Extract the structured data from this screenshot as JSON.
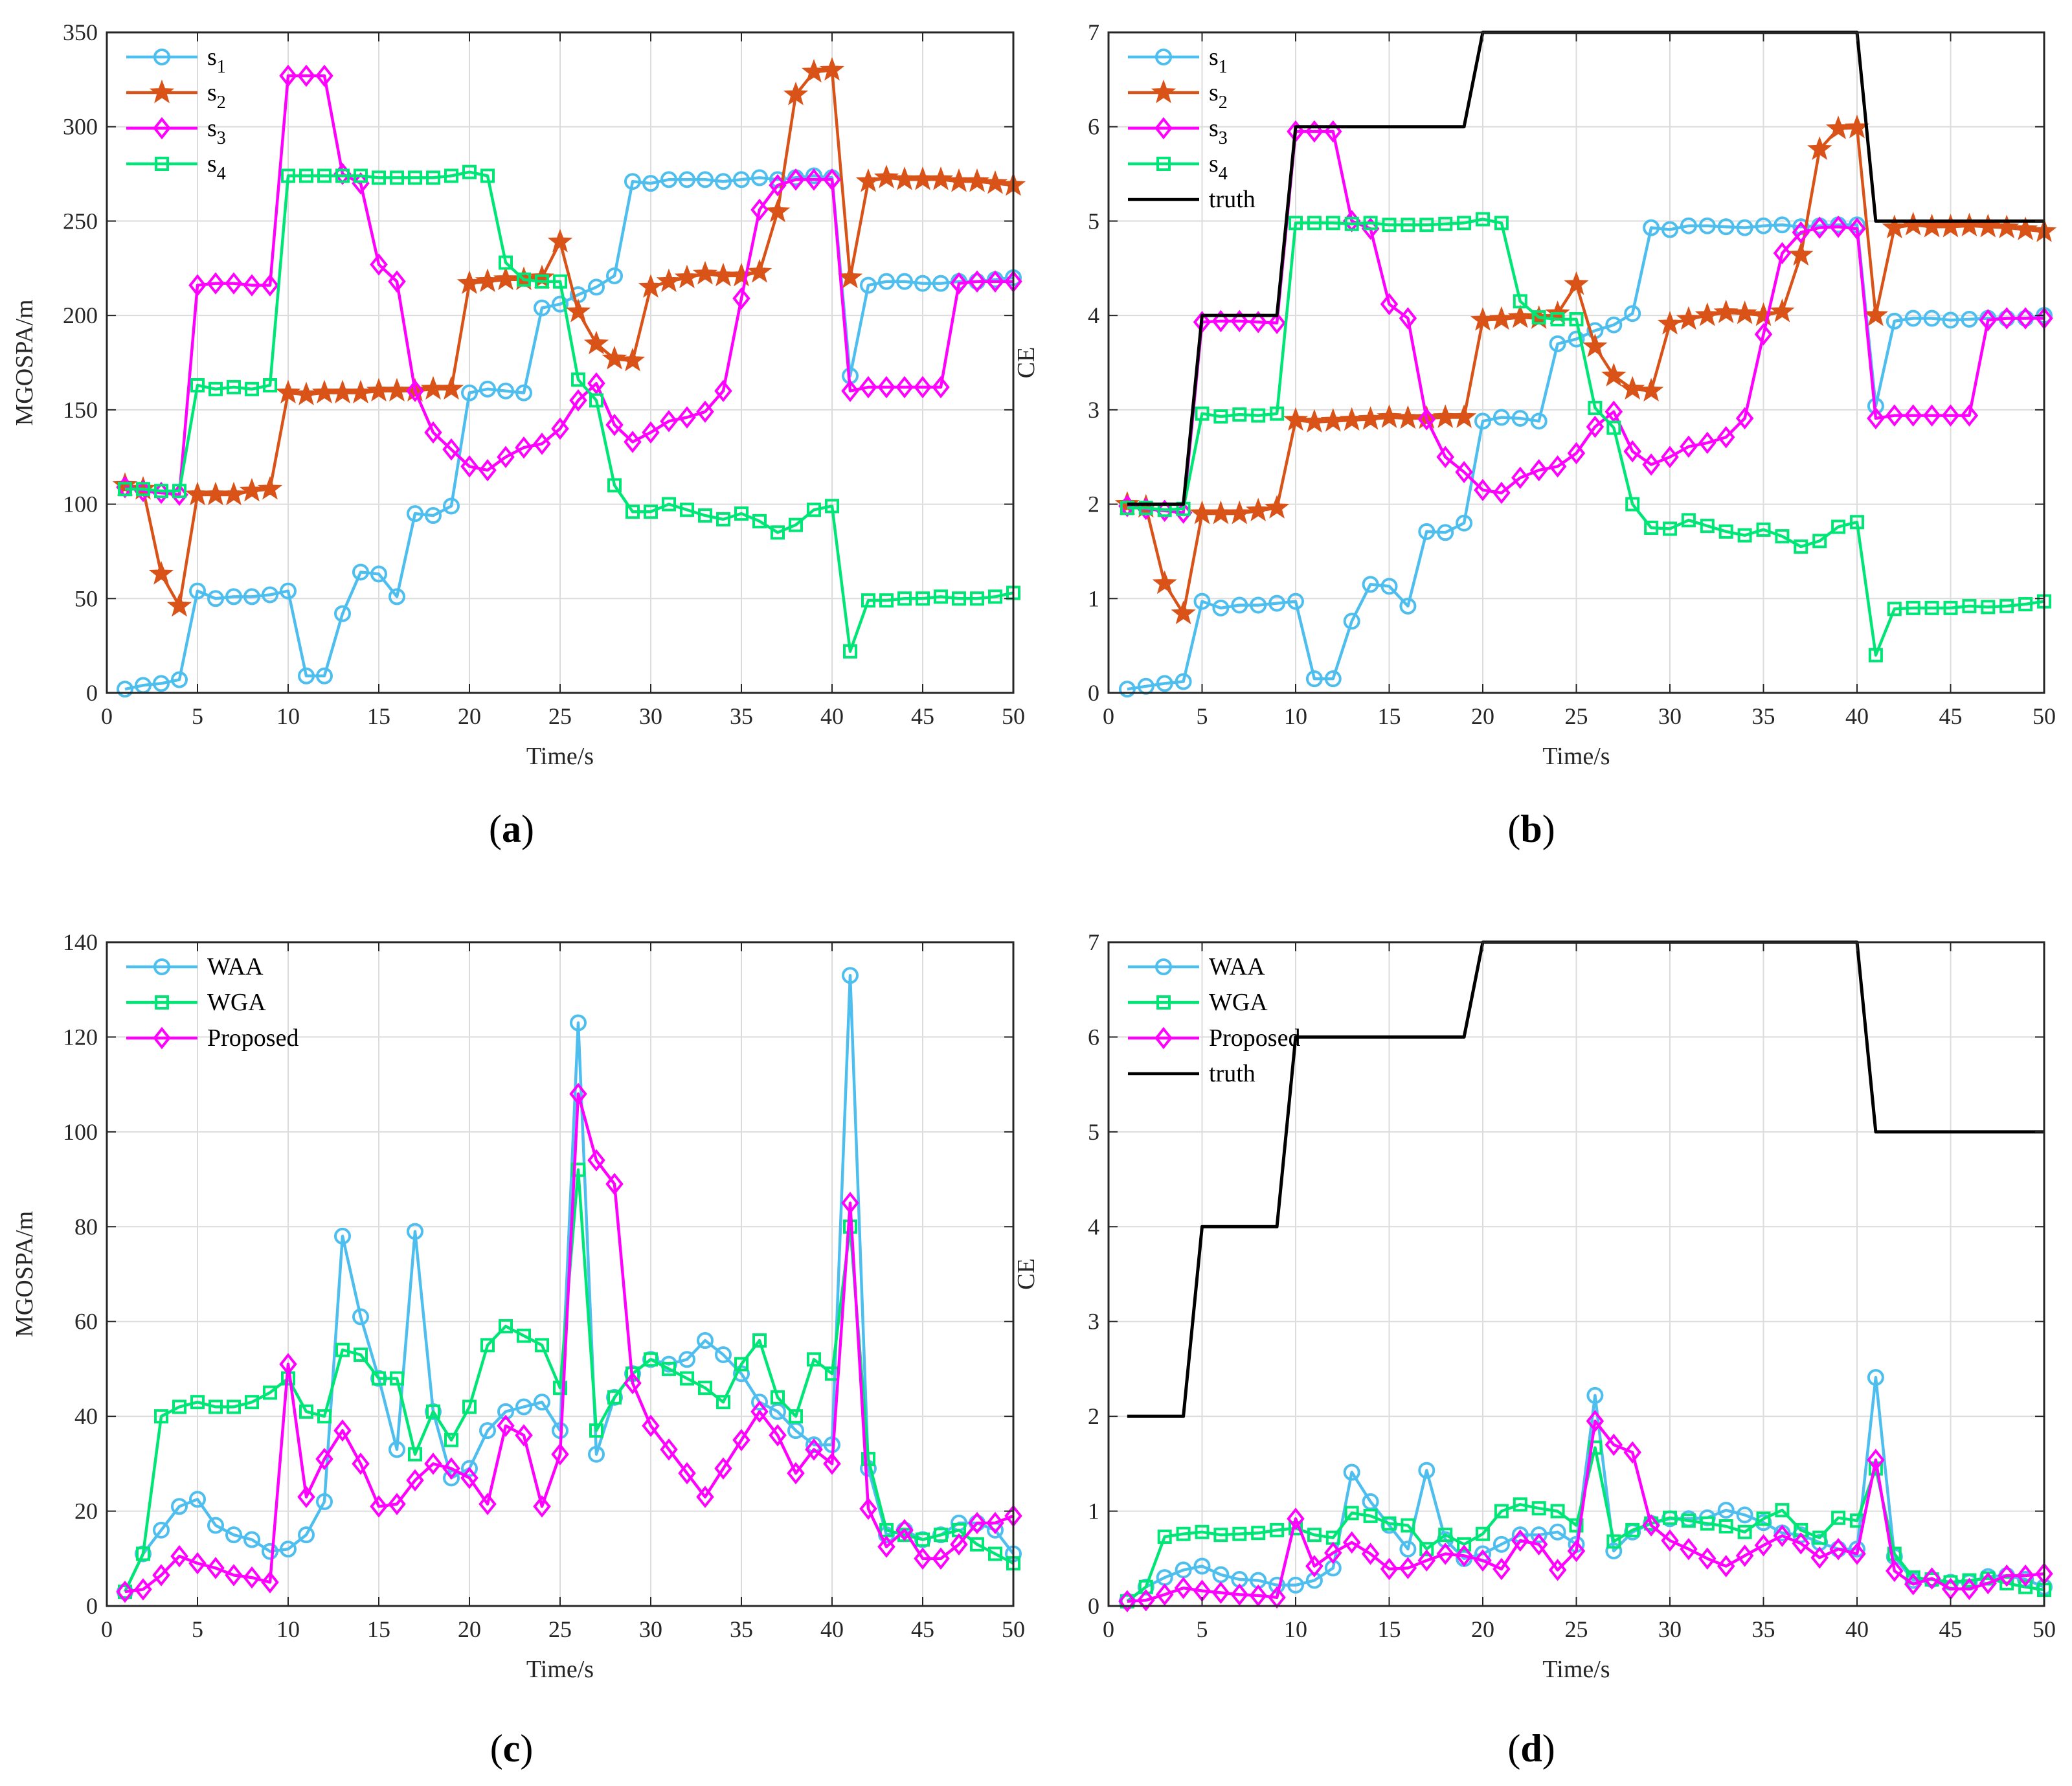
{
  "panel_labels": [
    "(a)",
    "(b)",
    "(c)",
    "(d)"
  ],
  "colors": {
    "s1": "#4DBEEE",
    "s2": "#D95319",
    "s3": "#FF00FF",
    "s4": "#00E676",
    "truth": "#000000",
    "WAA": "#4DBEEE",
    "WGA": "#00E676",
    "Proposed": "#FF00FF",
    "grid": "#dcdcdc"
  },
  "chart_data": [
    {
      "id": "a",
      "type": "line",
      "xlabel": "Time/s",
      "ylabel": "MGOSPA/m",
      "xlim": [
        0,
        50
      ],
      "ylim": [
        0,
        350
      ],
      "xticks": [
        0,
        5,
        10,
        15,
        20,
        25,
        30,
        35,
        40,
        45,
        50
      ],
      "yticks": [
        0,
        50,
        100,
        150,
        200,
        250,
        300,
        350
      ],
      "grid": true,
      "legend_position": "top-left",
      "x": [
        1,
        2,
        3,
        4,
        5,
        6,
        7,
        8,
        9,
        10,
        11,
        12,
        13,
        14,
        15,
        16,
        17,
        18,
        19,
        20,
        21,
        22,
        23,
        24,
        25,
        26,
        27,
        28,
        29,
        30,
        31,
        32,
        33,
        34,
        35,
        36,
        37,
        38,
        39,
        40,
        41,
        42,
        43,
        44,
        45,
        46,
        47,
        48,
        49,
        50
      ],
      "series": [
        {
          "name": "s_1",
          "color_key": "s1",
          "marker": "circle",
          "values": [
            2,
            4,
            5,
            7,
            54,
            50,
            51,
            51,
            52,
            54,
            9,
            9,
            42,
            64,
            63,
            51,
            95,
            94,
            99,
            159,
            161,
            160,
            159,
            204,
            206,
            211,
            215,
            221,
            271,
            270,
            272,
            272,
            272,
            271,
            272,
            273,
            272,
            273,
            274,
            273,
            168,
            216,
            218,
            218,
            217,
            217,
            218,
            218,
            219,
            220
          ]
        },
        {
          "name": "s_2",
          "color_key": "s2",
          "marker": "star",
          "values": [
            110,
            108,
            63,
            46,
            105,
            105,
            105,
            107,
            108,
            159,
            158,
            159,
            159,
            159,
            160,
            160,
            160,
            161,
            161,
            217,
            218,
            219,
            219,
            220,
            239,
            202,
            185,
            177,
            176,
            215,
            218,
            220,
            222,
            221,
            221,
            223,
            255,
            317,
            329,
            330,
            220,
            271,
            273,
            272,
            272,
            272,
            271,
            271,
            270,
            269
          ]
        },
        {
          "name": "s_3",
          "color_key": "s3",
          "marker": "diamond",
          "values": [
            109,
            107,
            106,
            105,
            216,
            217,
            217,
            216,
            216,
            327,
            327,
            327,
            275,
            270,
            227,
            218,
            160,
            138,
            129,
            120,
            118,
            125,
            130,
            132,
            140,
            155,
            164,
            142,
            133,
            138,
            144,
            146,
            149,
            160,
            209,
            256,
            269,
            272,
            272,
            272,
            160,
            162,
            162,
            162,
            162,
            162,
            217,
            218,
            218,
            218
          ]
        },
        {
          "name": "s_4",
          "color_key": "s4",
          "marker": "square",
          "values": [
            108,
            108,
            107,
            107,
            163,
            161,
            162,
            161,
            163,
            274,
            274,
            274,
            274,
            274,
            273,
            273,
            273,
            273,
            274,
            276,
            274,
            228,
            219,
            218,
            218,
            166,
            155,
            110,
            96,
            96,
            100,
            97,
            94,
            92,
            95,
            91,
            85,
            89,
            97,
            99,
            22,
            49,
            49,
            50,
            50,
            51,
            50,
            50,
            51,
            53
          ]
        }
      ]
    },
    {
      "id": "b",
      "type": "line",
      "xlabel": "Time/s",
      "ylabel": "CE",
      "xlim": [
        0,
        50
      ],
      "ylim": [
        0,
        7
      ],
      "xticks": [
        0,
        5,
        10,
        15,
        20,
        25,
        30,
        35,
        40,
        45,
        50
      ],
      "yticks": [
        0,
        1,
        2,
        3,
        4,
        5,
        6,
        7
      ],
      "grid": true,
      "legend_position": "top-left",
      "x": [
        1,
        2,
        3,
        4,
        5,
        6,
        7,
        8,
        9,
        10,
        11,
        12,
        13,
        14,
        15,
        16,
        17,
        18,
        19,
        20,
        21,
        22,
        23,
        24,
        25,
        26,
        27,
        28,
        29,
        30,
        31,
        32,
        33,
        34,
        35,
        36,
        37,
        38,
        39,
        40,
        41,
        42,
        43,
        44,
        45,
        46,
        47,
        48,
        49,
        50
      ],
      "series": [
        {
          "name": "s_1",
          "color_key": "s1",
          "marker": "circle",
          "values": [
            0.04,
            0.07,
            0.1,
            0.12,
            0.97,
            0.9,
            0.93,
            0.93,
            0.95,
            0.97,
            0.15,
            0.15,
            0.76,
            1.15,
            1.13,
            0.92,
            1.71,
            1.7,
            1.8,
            2.88,
            2.92,
            2.91,
            2.88,
            3.7,
            3.75,
            3.84,
            3.9,
            4.02,
            4.93,
            4.91,
            4.95,
            4.95,
            4.94,
            4.93,
            4.95,
            4.96,
            4.94,
            4.95,
            4.96,
            4.96,
            3.04,
            3.94,
            3.97,
            3.97,
            3.95,
            3.96,
            3.97,
            3.97,
            3.97,
            4.0
          ]
        },
        {
          "name": "s_2",
          "color_key": "s2",
          "marker": "star",
          "values": [
            2.0,
            1.97,
            1.16,
            0.84,
            1.9,
            1.9,
            1.9,
            1.93,
            1.96,
            2.89,
            2.87,
            2.88,
            2.89,
            2.9,
            2.92,
            2.91,
            2.91,
            2.92,
            2.92,
            3.95,
            3.96,
            3.98,
            3.97,
            4.02,
            4.33,
            3.67,
            3.36,
            3.22,
            3.2,
            3.91,
            3.96,
            4.0,
            4.03,
            4.02,
            4.0,
            4.04,
            4.64,
            5.76,
            5.98,
            5.99,
            4.0,
            4.93,
            4.96,
            4.94,
            4.94,
            4.95,
            4.94,
            4.93,
            4.91,
            4.89
          ]
        },
        {
          "name": "s_3",
          "color_key": "s3",
          "marker": "diamond",
          "values": [
            1.98,
            1.95,
            1.93,
            1.91,
            3.93,
            3.94,
            3.94,
            3.93,
            3.92,
            5.95,
            5.95,
            5.95,
            5.0,
            4.92,
            4.12,
            3.97,
            2.9,
            2.5,
            2.34,
            2.15,
            2.12,
            2.28,
            2.36,
            2.4,
            2.54,
            2.82,
            2.98,
            2.56,
            2.42,
            2.5,
            2.61,
            2.65,
            2.71,
            2.91,
            3.8,
            4.66,
            4.88,
            4.93,
            4.94,
            4.92,
            2.91,
            2.94,
            2.94,
            2.94,
            2.94,
            2.94,
            3.95,
            3.97,
            3.97,
            3.97
          ]
        },
        {
          "name": "s_4",
          "color_key": "s4",
          "marker": "square",
          "values": [
            1.96,
            1.96,
            1.94,
            1.95,
            2.96,
            2.93,
            2.95,
            2.94,
            2.96,
            4.98,
            4.98,
            4.98,
            4.97,
            4.98,
            4.96,
            4.96,
            4.96,
            4.97,
            4.98,
            5.02,
            4.98,
            4.15,
            3.98,
            3.96,
            3.96,
            3.02,
            2.81,
            2.0,
            1.75,
            1.74,
            1.83,
            1.77,
            1.71,
            1.67,
            1.73,
            1.66,
            1.55,
            1.61,
            1.76,
            1.81,
            0.4,
            0.89,
            0.9,
            0.9,
            0.9,
            0.92,
            0.91,
            0.92,
            0.94,
            0.97
          ]
        },
        {
          "name": "truth",
          "color_key": "truth",
          "marker": "none",
          "step": true,
          "x": [
            1,
            4,
            5,
            9,
            10,
            19,
            20,
            40,
            41,
            50
          ],
          "values": [
            2,
            2,
            4,
            4,
            6,
            6,
            7,
            7,
            5,
            5
          ]
        }
      ]
    },
    {
      "id": "c",
      "type": "line",
      "xlabel": "Time/s",
      "ylabel": "MGOSPA/m",
      "xlim": [
        0,
        50
      ],
      "ylim": [
        0,
        140
      ],
      "xticks": [
        0,
        5,
        10,
        15,
        20,
        25,
        30,
        35,
        40,
        45,
        50
      ],
      "yticks": [
        0,
        20,
        40,
        60,
        80,
        100,
        120,
        140
      ],
      "grid": true,
      "legend_position": "top-left",
      "x": [
        1,
        2,
        3,
        4,
        5,
        6,
        7,
        8,
        9,
        10,
        11,
        12,
        13,
        14,
        15,
        16,
        17,
        18,
        19,
        20,
        21,
        22,
        23,
        24,
        25,
        26,
        27,
        28,
        29,
        30,
        31,
        32,
        33,
        34,
        35,
        36,
        37,
        38,
        39,
        40,
        41,
        42,
        43,
        44,
        45,
        46,
        47,
        48,
        49,
        50
      ],
      "series": [
        {
          "name": "WAA",
          "color_key": "WAA",
          "marker": "circle",
          "values": [
            3,
            11,
            16,
            21,
            22.5,
            17,
            15,
            14,
            11.5,
            12,
            15,
            22,
            78,
            61,
            48,
            33,
            79,
            41,
            27,
            29,
            37,
            41,
            42,
            43,
            37,
            123,
            32,
            44,
            49,
            52,
            51,
            52,
            56,
            53,
            49,
            43,
            41,
            37,
            34,
            34,
            133,
            29,
            15,
            16,
            14,
            15,
            17.5,
            17.5,
            16,
            11
          ]
        },
        {
          "name": "WGA",
          "color_key": "WGA",
          "marker": "square",
          "values": [
            3,
            11,
            40,
            42,
            43,
            42,
            42,
            43,
            45,
            48,
            41,
            40,
            54,
            53,
            48,
            48,
            32,
            41,
            35,
            42,
            55,
            59,
            57,
            55,
            46,
            92,
            37,
            44,
            49,
            52,
            50,
            48,
            46,
            43,
            51,
            56,
            44,
            40,
            52,
            49,
            80,
            31,
            16,
            15,
            14,
            15,
            16,
            13,
            11,
            9
          ]
        },
        {
          "name": "Proposed",
          "color_key": "Proposed",
          "marker": "diamond",
          "values": [
            3,
            3.5,
            6.5,
            10.5,
            9,
            8,
            6.5,
            6,
            5,
            51,
            23,
            31,
            37,
            30,
            21,
            21.5,
            26.5,
            30,
            29,
            27,
            21.5,
            38,
            36,
            21,
            32,
            108,
            94,
            89,
            47,
            38,
            33,
            28,
            23,
            29,
            35,
            41,
            36,
            28,
            33,
            30,
            85,
            20.5,
            12.5,
            16,
            10,
            10,
            13,
            17.5,
            17.5,
            19
          ]
        }
      ]
    },
    {
      "id": "d",
      "type": "line",
      "xlabel": "Time/s",
      "ylabel": "CE",
      "xlim": [
        0,
        50
      ],
      "ylim": [
        0,
        7
      ],
      "xticks": [
        0,
        5,
        10,
        15,
        20,
        25,
        30,
        35,
        40,
        45,
        50
      ],
      "yticks": [
        0,
        1,
        2,
        3,
        4,
        5,
        6,
        7
      ],
      "grid": true,
      "legend_position": "top-left",
      "x": [
        1,
        2,
        3,
        4,
        5,
        6,
        7,
        8,
        9,
        10,
        11,
        12,
        13,
        14,
        15,
        16,
        17,
        18,
        19,
        20,
        21,
        22,
        23,
        24,
        25,
        26,
        27,
        28,
        29,
        30,
        31,
        32,
        33,
        34,
        35,
        36,
        37,
        38,
        39,
        40,
        41,
        42,
        43,
        44,
        45,
        46,
        47,
        48,
        49,
        50
      ],
      "series": [
        {
          "name": "WAA",
          "color_key": "WAA",
          "marker": "circle",
          "values": [
            0.05,
            0.2,
            0.3,
            0.38,
            0.42,
            0.33,
            0.28,
            0.27,
            0.22,
            0.22,
            0.27,
            0.4,
            1.41,
            1.1,
            0.85,
            0.6,
            1.43,
            0.7,
            0.5,
            0.55,
            0.65,
            0.75,
            0.75,
            0.78,
            0.65,
            2.22,
            0.58,
            0.78,
            0.87,
            0.92,
            0.92,
            0.93,
            1.01,
            0.96,
            0.88,
            0.77,
            0.75,
            0.67,
            0.6,
            0.6,
            2.41,
            0.52,
            0.27,
            0.28,
            0.25,
            0.25,
            0.31,
            0.32,
            0.28,
            0.2
          ]
        },
        {
          "name": "WGA",
          "color_key": "WGA",
          "marker": "square",
          "values": [
            0.05,
            0.2,
            0.73,
            0.76,
            0.78,
            0.75,
            0.76,
            0.77,
            0.8,
            0.82,
            0.75,
            0.72,
            0.98,
            0.95,
            0.87,
            0.85,
            0.6,
            0.75,
            0.65,
            0.76,
            1.0,
            1.07,
            1.03,
            1.0,
            0.85,
            1.67,
            0.68,
            0.8,
            0.87,
            0.93,
            0.9,
            0.87,
            0.84,
            0.78,
            0.92,
            1.01,
            0.8,
            0.72,
            0.93,
            0.9,
            1.45,
            0.55,
            0.3,
            0.28,
            0.25,
            0.27,
            0.29,
            0.24,
            0.2,
            0.17
          ]
        },
        {
          "name": "Proposed",
          "color_key": "Proposed",
          "marker": "diamond",
          "values": [
            0.05,
            0.06,
            0.12,
            0.19,
            0.16,
            0.14,
            0.12,
            0.11,
            0.09,
            0.92,
            0.42,
            0.56,
            0.67,
            0.55,
            0.39,
            0.4,
            0.48,
            0.55,
            0.53,
            0.48,
            0.39,
            0.69,
            0.65,
            0.38,
            0.58,
            1.95,
            1.7,
            1.62,
            0.85,
            0.69,
            0.6,
            0.5,
            0.42,
            0.53,
            0.64,
            0.74,
            0.66,
            0.51,
            0.6,
            0.55,
            1.54,
            0.37,
            0.23,
            0.29,
            0.18,
            0.18,
            0.24,
            0.32,
            0.32,
            0.34
          ]
        },
        {
          "name": "truth",
          "color_key": "truth",
          "marker": "none",
          "step": true,
          "x": [
            1,
            4,
            5,
            9,
            10,
            19,
            20,
            40,
            41,
            50
          ],
          "values": [
            2,
            2,
            4,
            4,
            6,
            6,
            7,
            7,
            5,
            5
          ]
        }
      ]
    }
  ]
}
